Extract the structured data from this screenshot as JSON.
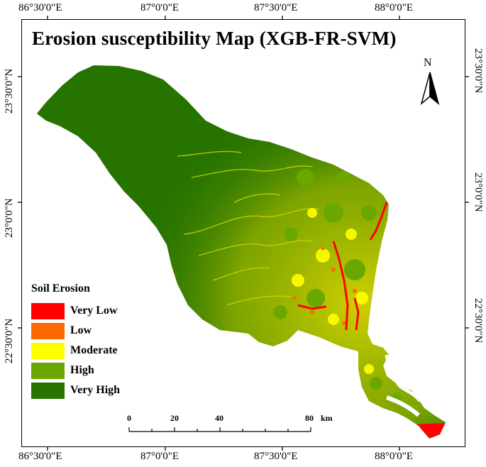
{
  "title": "Erosion susceptibility Map (XGB-FR-SVM)",
  "north_label": "N",
  "longitude_labels": [
    "86°30'0\"E",
    "87°0'0\"E",
    "87°30'0\"E",
    "88°0'0\"E"
  ],
  "latitude_labels": [
    "23°30'0\"N",
    "23°0'0\"N",
    "22°30'0\"N"
  ],
  "legend": {
    "title": "Soil Erosion",
    "items": [
      {
        "label": "Very Low",
        "color": "#ff0000"
      },
      {
        "label": "Low",
        "color": "#ff6a00"
      },
      {
        "label": "Moderate",
        "color": "#ffff00"
      },
      {
        "label": "High",
        "color": "#6aa800"
      },
      {
        "label": "Very High",
        "color": "#267300"
      }
    ]
  },
  "scale_bar": {
    "labels": [
      "0",
      "20",
      "40",
      "80"
    ],
    "unit": "km"
  }
}
